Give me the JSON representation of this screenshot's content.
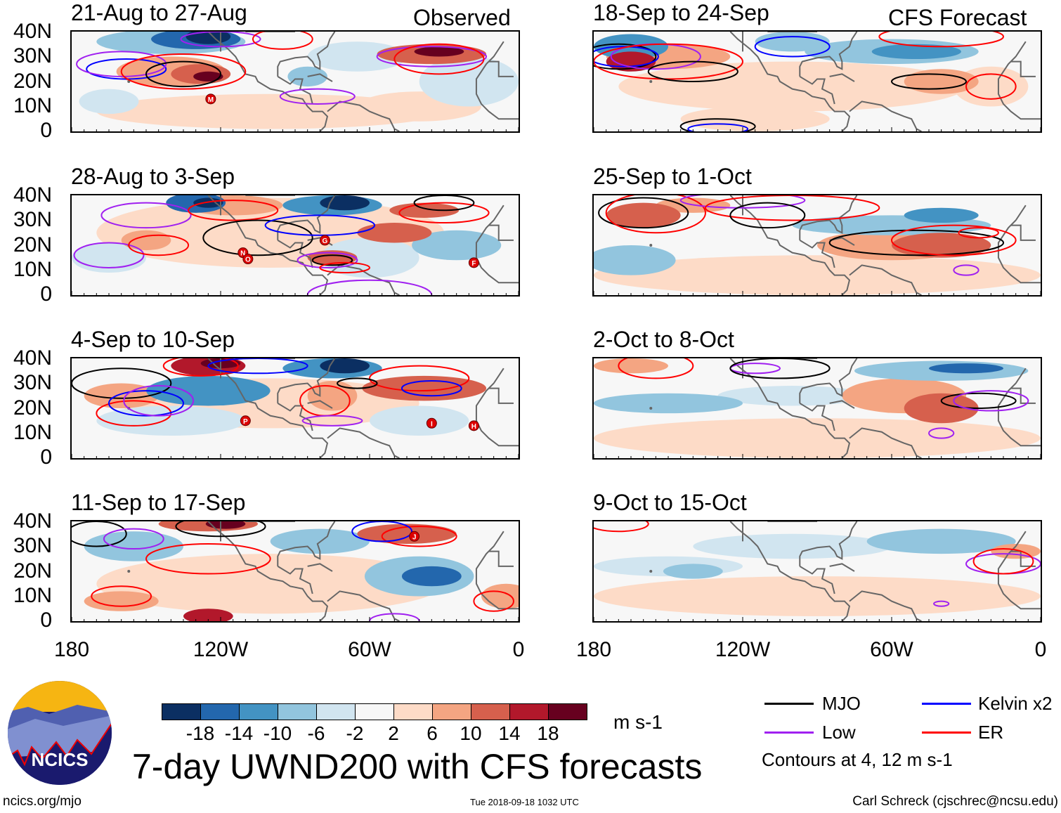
{
  "headers": {
    "observed": "Observed",
    "forecast": "CFS Forecast"
  },
  "panels": [
    {
      "title": "21-Aug to 27-Aug",
      "column": "observed",
      "storms": [
        "M"
      ]
    },
    {
      "title": "28-Aug to 3-Sep",
      "column": "observed",
      "storms": [
        "N",
        "O",
        "G",
        "F"
      ]
    },
    {
      "title": "4-Sep to 10-Sep",
      "column": "observed",
      "storms": [
        "P",
        "I",
        "H"
      ]
    },
    {
      "title": "11-Sep to 17-Sep",
      "column": "observed",
      "storms": [
        "J"
      ]
    },
    {
      "title": "18-Sep to 24-Sep",
      "column": "forecast",
      "storms": []
    },
    {
      "title": "25-Sep to 1-Oct",
      "column": "forecast",
      "storms": []
    },
    {
      "title": "2-Oct to 8-Oct",
      "column": "forecast",
      "storms": []
    },
    {
      "title": "9-Oct to 15-Oct",
      "column": "forecast",
      "storms": []
    }
  ],
  "axes": {
    "lat_labels": [
      "40N",
      "30N",
      "20N",
      "10N",
      "0"
    ],
    "lon_labels": [
      "180",
      "120W",
      "60W",
      "0"
    ]
  },
  "colorbar": {
    "colors": [
      "#0b2f62",
      "#2367ad",
      "#4393c3",
      "#92c5de",
      "#d1e5f0",
      "#f7f7f7",
      "#fddbc7",
      "#f4a582",
      "#d6604d",
      "#b2182b",
      "#67001f"
    ],
    "labels": [
      "-18",
      "-14",
      "-10",
      "-6",
      "-2",
      "2",
      "6",
      "10",
      "14",
      "18"
    ],
    "units": "m s-1"
  },
  "legend": {
    "items": [
      {
        "label": "MJO",
        "color": "#000000"
      },
      {
        "label": "Kelvin x2",
        "color": "#0000ff"
      },
      {
        "label": "Low",
        "color": "#a020f0"
      },
      {
        "label": "ER",
        "color": "#ff0000"
      }
    ],
    "note": "Contours at 4, 12 m s-1"
  },
  "title": "7-day UWND200 with CFS forecasts",
  "logo_text": "NCICS",
  "footer": {
    "url": "ncics.org/mjo",
    "timestamp": "Tue 2018-09-18 1032 UTC",
    "author": "Carl Schreck (cjschrec@ncsu.edu)"
  }
}
